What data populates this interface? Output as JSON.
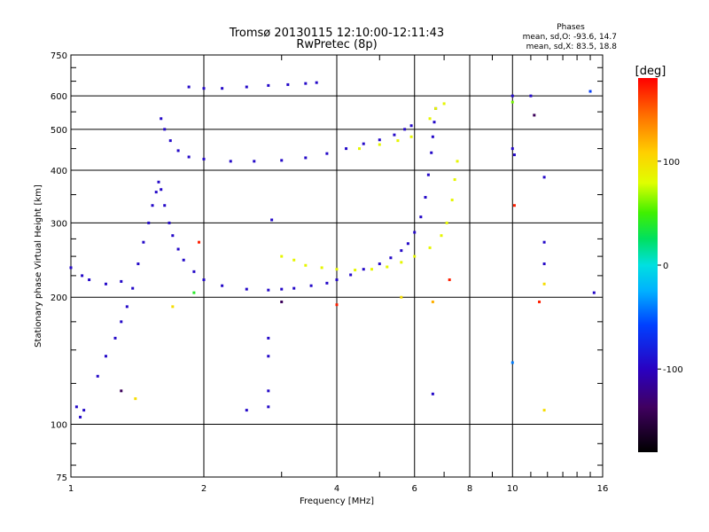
{
  "chart_data": {
    "type": "scatter",
    "title": "Tromsø 20130115 12:10:00-12:11:43",
    "subtitle": "RwPretec (8p)",
    "phase_stats": {
      "heading": "Phases",
      "line_o": "mean, sd,O: -93.6, 14.7",
      "line_x": "mean, sd,X:  83.5, 18.8"
    },
    "xlabel": "Frequency [MHz]",
    "ylabel": "Stationary phase Virtual Height [km]",
    "x_scale": "log",
    "y_scale": "log",
    "xlim": [
      1,
      16
    ],
    "ylim": [
      75,
      750
    ],
    "x_ticks": [
      {
        "value": 1,
        "label": "1"
      },
      {
        "value": 2,
        "label": "2"
      },
      {
        "value": 4,
        "label": "4"
      },
      {
        "value": 6,
        "label": "6"
      },
      {
        "value": 8,
        "label": "8"
      },
      {
        "value": 10,
        "label": "10"
      },
      {
        "value": 16,
        "label": "16"
      }
    ],
    "y_ticks": [
      {
        "value": 75,
        "label": "75"
      },
      {
        "value": 100,
        "label": "100"
      },
      {
        "value": 200,
        "label": "200"
      },
      {
        "value": 300,
        "label": "300"
      },
      {
        "value": 400,
        "label": "400"
      },
      {
        "value": 500,
        "label": "500"
      },
      {
        "value": 600,
        "label": "600"
      },
      {
        "value": 750,
        "label": "750"
      }
    ],
    "grid": true,
    "colorbar": {
      "label": "[deg]",
      "range": [
        -180,
        180
      ],
      "ticks": [
        {
          "value": 100,
          "label": "100"
        },
        {
          "value": 0,
          "label": "0"
        },
        {
          "value": -100,
          "label": "-100"
        }
      ]
    },
    "points": [
      {
        "x": 1.0,
        "y": 235,
        "phase": -95
      },
      {
        "x": 1.06,
        "y": 225,
        "phase": -95
      },
      {
        "x": 1.1,
        "y": 220,
        "phase": -95
      },
      {
        "x": 1.2,
        "y": 215,
        "phase": -95
      },
      {
        "x": 1.3,
        "y": 218,
        "phase": -95
      },
      {
        "x": 1.03,
        "y": 110,
        "phase": -95
      },
      {
        "x": 1.05,
        "y": 104,
        "phase": -95
      },
      {
        "x": 1.07,
        "y": 108,
        "phase": -95
      },
      {
        "x": 1.15,
        "y": 130,
        "phase": -95
      },
      {
        "x": 1.2,
        "y": 145,
        "phase": -95
      },
      {
        "x": 1.26,
        "y": 160,
        "phase": -95
      },
      {
        "x": 1.3,
        "y": 175,
        "phase": -95
      },
      {
        "x": 1.34,
        "y": 190,
        "phase": -95
      },
      {
        "x": 1.38,
        "y": 210,
        "phase": -95
      },
      {
        "x": 1.42,
        "y": 240,
        "phase": -95
      },
      {
        "x": 1.46,
        "y": 270,
        "phase": -95
      },
      {
        "x": 1.5,
        "y": 300,
        "phase": -95
      },
      {
        "x": 1.53,
        "y": 330,
        "phase": -95
      },
      {
        "x": 1.56,
        "y": 355,
        "phase": -95
      },
      {
        "x": 1.58,
        "y": 375,
        "phase": -95
      },
      {
        "x": 1.6,
        "y": 360,
        "phase": -95
      },
      {
        "x": 1.63,
        "y": 330,
        "phase": -95
      },
      {
        "x": 1.67,
        "y": 300,
        "phase": -95
      },
      {
        "x": 1.7,
        "y": 280,
        "phase": -95
      },
      {
        "x": 1.75,
        "y": 260,
        "phase": -95
      },
      {
        "x": 1.8,
        "y": 245,
        "phase": -95
      },
      {
        "x": 1.9,
        "y": 230,
        "phase": -95
      },
      {
        "x": 2.0,
        "y": 220,
        "phase": -95
      },
      {
        "x": 2.2,
        "y": 213,
        "phase": -95
      },
      {
        "x": 2.5,
        "y": 209,
        "phase": -95
      },
      {
        "x": 2.8,
        "y": 208,
        "phase": -95
      },
      {
        "x": 3.0,
        "y": 209,
        "phase": -95
      },
      {
        "x": 3.2,
        "y": 210,
        "phase": -95
      },
      {
        "x": 3.5,
        "y": 213,
        "phase": -95
      },
      {
        "x": 3.8,
        "y": 216,
        "phase": -95
      },
      {
        "x": 4.0,
        "y": 220,
        "phase": -95
      },
      {
        "x": 4.3,
        "y": 226,
        "phase": -95
      },
      {
        "x": 4.6,
        "y": 233,
        "phase": -95
      },
      {
        "x": 5.0,
        "y": 240,
        "phase": -95
      },
      {
        "x": 5.3,
        "y": 248,
        "phase": -95
      },
      {
        "x": 5.6,
        "y": 258,
        "phase": -95
      },
      {
        "x": 5.8,
        "y": 268,
        "phase": -95
      },
      {
        "x": 6.0,
        "y": 285,
        "phase": -95
      },
      {
        "x": 6.2,
        "y": 310,
        "phase": -95
      },
      {
        "x": 6.35,
        "y": 345,
        "phase": -95
      },
      {
        "x": 6.45,
        "y": 390,
        "phase": -95
      },
      {
        "x": 6.55,
        "y": 440,
        "phase": -95
      },
      {
        "x": 6.6,
        "y": 480,
        "phase": -95
      },
      {
        "x": 6.65,
        "y": 520,
        "phase": -95
      },
      {
        "x": 6.7,
        "y": 560,
        "phase": -95
      },
      {
        "x": 1.6,
        "y": 530,
        "phase": -95
      },
      {
        "x": 1.63,
        "y": 500,
        "phase": -95
      },
      {
        "x": 1.68,
        "y": 470,
        "phase": -95
      },
      {
        "x": 1.75,
        "y": 445,
        "phase": -95
      },
      {
        "x": 1.85,
        "y": 430,
        "phase": -95
      },
      {
        "x": 2.0,
        "y": 425,
        "phase": -95
      },
      {
        "x": 2.3,
        "y": 420,
        "phase": -95
      },
      {
        "x": 2.6,
        "y": 420,
        "phase": -95
      },
      {
        "x": 3.0,
        "y": 422,
        "phase": -95
      },
      {
        "x": 3.4,
        "y": 428,
        "phase": -95
      },
      {
        "x": 3.8,
        "y": 438,
        "phase": -95
      },
      {
        "x": 4.2,
        "y": 450,
        "phase": -95
      },
      {
        "x": 4.6,
        "y": 462,
        "phase": -95
      },
      {
        "x": 5.0,
        "y": 472,
        "phase": -95
      },
      {
        "x": 5.4,
        "y": 485,
        "phase": -95
      },
      {
        "x": 5.7,
        "y": 500,
        "phase": -95
      },
      {
        "x": 5.9,
        "y": 510,
        "phase": -95
      },
      {
        "x": 1.85,
        "y": 630,
        "phase": -95
      },
      {
        "x": 2.0,
        "y": 625,
        "phase": -95
      },
      {
        "x": 2.2,
        "y": 625,
        "phase": -95
      },
      {
        "x": 2.5,
        "y": 630,
        "phase": -95
      },
      {
        "x": 2.8,
        "y": 635,
        "phase": -95
      },
      {
        "x": 3.1,
        "y": 638,
        "phase": -95
      },
      {
        "x": 3.4,
        "y": 642,
        "phase": -95
      },
      {
        "x": 3.6,
        "y": 645,
        "phase": -95
      },
      {
        "x": 3.0,
        "y": 250,
        "phase": 85
      },
      {
        "x": 3.2,
        "y": 245,
        "phase": 85
      },
      {
        "x": 3.4,
        "y": 238,
        "phase": 85
      },
      {
        "x": 3.7,
        "y": 235,
        "phase": 85
      },
      {
        "x": 4.0,
        "y": 233,
        "phase": 85
      },
      {
        "x": 4.4,
        "y": 232,
        "phase": 85
      },
      {
        "x": 4.8,
        "y": 233,
        "phase": 85
      },
      {
        "x": 5.2,
        "y": 236,
        "phase": 85
      },
      {
        "x": 5.6,
        "y": 242,
        "phase": 85
      },
      {
        "x": 6.0,
        "y": 250,
        "phase": 85
      },
      {
        "x": 6.5,
        "y": 262,
        "phase": 85
      },
      {
        "x": 6.9,
        "y": 280,
        "phase": 85
      },
      {
        "x": 7.1,
        "y": 300,
        "phase": 85
      },
      {
        "x": 7.3,
        "y": 340,
        "phase": 85
      },
      {
        "x": 7.4,
        "y": 380,
        "phase": 85
      },
      {
        "x": 7.5,
        "y": 420,
        "phase": 85
      },
      {
        "x": 4.5,
        "y": 450,
        "phase": 85
      },
      {
        "x": 5.0,
        "y": 460,
        "phase": 85
      },
      {
        "x": 5.5,
        "y": 470,
        "phase": 85
      },
      {
        "x": 5.9,
        "y": 480,
        "phase": 85
      },
      {
        "x": 6.5,
        "y": 530,
        "phase": 85
      },
      {
        "x": 6.7,
        "y": 560,
        "phase": 85
      },
      {
        "x": 7.0,
        "y": 575,
        "phase": 85
      },
      {
        "x": 2.85,
        "y": 305,
        "phase": -95
      },
      {
        "x": 2.8,
        "y": 160,
        "phase": -95
      },
      {
        "x": 2.8,
        "y": 145,
        "phase": -95
      },
      {
        "x": 2.8,
        "y": 120,
        "phase": -95
      },
      {
        "x": 2.8,
        "y": 110,
        "phase": -95
      },
      {
        "x": 2.5,
        "y": 108,
        "phase": -95
      },
      {
        "x": 3.0,
        "y": 195,
        "phase": -140
      },
      {
        "x": 4.0,
        "y": 192,
        "phase": 170
      },
      {
        "x": 6.6,
        "y": 118,
        "phase": -95
      },
      {
        "x": 6.6,
        "y": 195,
        "phase": 120
      },
      {
        "x": 7.2,
        "y": 220,
        "phase": 170
      },
      {
        "x": 10.0,
        "y": 600,
        "phase": -95
      },
      {
        "x": 10.0,
        "y": 580,
        "phase": 60
      },
      {
        "x": 10.0,
        "y": 450,
        "phase": -95
      },
      {
        "x": 10.1,
        "y": 435,
        "phase": -95
      },
      {
        "x": 10.1,
        "y": 330,
        "phase": 170
      },
      {
        "x": 10.0,
        "y": 140,
        "phase": -40
      },
      {
        "x": 11.0,
        "y": 600,
        "phase": -95
      },
      {
        "x": 11.2,
        "y": 540,
        "phase": -140
      },
      {
        "x": 11.8,
        "y": 385,
        "phase": -95
      },
      {
        "x": 11.8,
        "y": 270,
        "phase": -95
      },
      {
        "x": 11.8,
        "y": 240,
        "phase": -95
      },
      {
        "x": 11.8,
        "y": 215,
        "phase": 100
      },
      {
        "x": 11.5,
        "y": 195,
        "phase": 170
      },
      {
        "x": 11.8,
        "y": 108,
        "phase": 100
      },
      {
        "x": 15.0,
        "y": 615,
        "phase": -60
      },
      {
        "x": 15.3,
        "y": 205,
        "phase": -95
      },
      {
        "x": 1.7,
        "y": 190,
        "phase": 100
      },
      {
        "x": 1.9,
        "y": 205,
        "phase": 40
      },
      {
        "x": 1.95,
        "y": 270,
        "phase": 170
      },
      {
        "x": 1.4,
        "y": 115,
        "phase": 100
      },
      {
        "x": 1.3,
        "y": 120,
        "phase": -140
      },
      {
        "x": 5.6,
        "y": 200,
        "phase": 100
      }
    ]
  }
}
